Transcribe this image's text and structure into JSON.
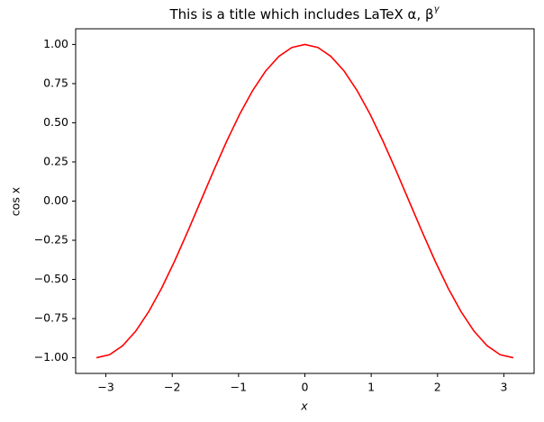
{
  "chart_data": {
    "type": "line",
    "title": "This is a title which includes LaTeX α, β",
    "title_superscript": "γ",
    "x_label": "x",
    "y_label": "cos x",
    "x": [
      -3.1416,
      -2.9452,
      -2.7489,
      -2.5525,
      -2.3562,
      -2.1598,
      -1.9635,
      -1.7671,
      -1.5708,
      -1.3744,
      -1.1781,
      -0.9817,
      -0.7854,
      -0.589,
      -0.3927,
      -0.1963,
      0,
      0.1963,
      0.3927,
      0.589,
      0.7854,
      0.9817,
      1.1781,
      1.3744,
      1.5708,
      1.7671,
      1.9635,
      2.1598,
      2.3562,
      2.5525,
      2.7489,
      2.9452,
      3.1416
    ],
    "values": [
      -1,
      -0.9808,
      -0.9239,
      -0.8315,
      -0.7071,
      -0.5556,
      -0.3827,
      -0.1951,
      0,
      0.1951,
      0.3827,
      0.5556,
      0.7071,
      0.8315,
      0.9239,
      0.9808,
      1,
      0.9808,
      0.9239,
      0.8315,
      0.7071,
      0.5556,
      0.3827,
      0.1951,
      0,
      -0.1951,
      -0.3827,
      -0.5556,
      -0.7071,
      -0.8315,
      -0.9239,
      -0.9808,
      -1
    ],
    "color": "#ff0000",
    "xlim": [
      -3.4558,
      3.4558
    ],
    "ylim": [
      -1.1,
      1.1
    ],
    "xticks": [
      {
        "value": -3,
        "label": "−3"
      },
      {
        "value": -2,
        "label": "−2"
      },
      {
        "value": -1,
        "label": "−1"
      },
      0,
      1,
      2,
      3
    ],
    "yticks": [
      {
        "value": -1,
        "label": "−1.00"
      },
      {
        "value": -0.75,
        "label": "−0.75"
      },
      {
        "value": -0.5,
        "label": "−0.50"
      },
      {
        "value": -0.25,
        "label": "−0.25"
      },
      {
        "value": 0,
        "label": "0.00"
      },
      {
        "value": 0.25,
        "label": "0.25"
      },
      {
        "value": 0.5,
        "label": "0.50"
      },
      {
        "value": 0.75,
        "label": "0.75"
      },
      {
        "value": 1,
        "label": "1.00"
      }
    ],
    "grid": false
  }
}
